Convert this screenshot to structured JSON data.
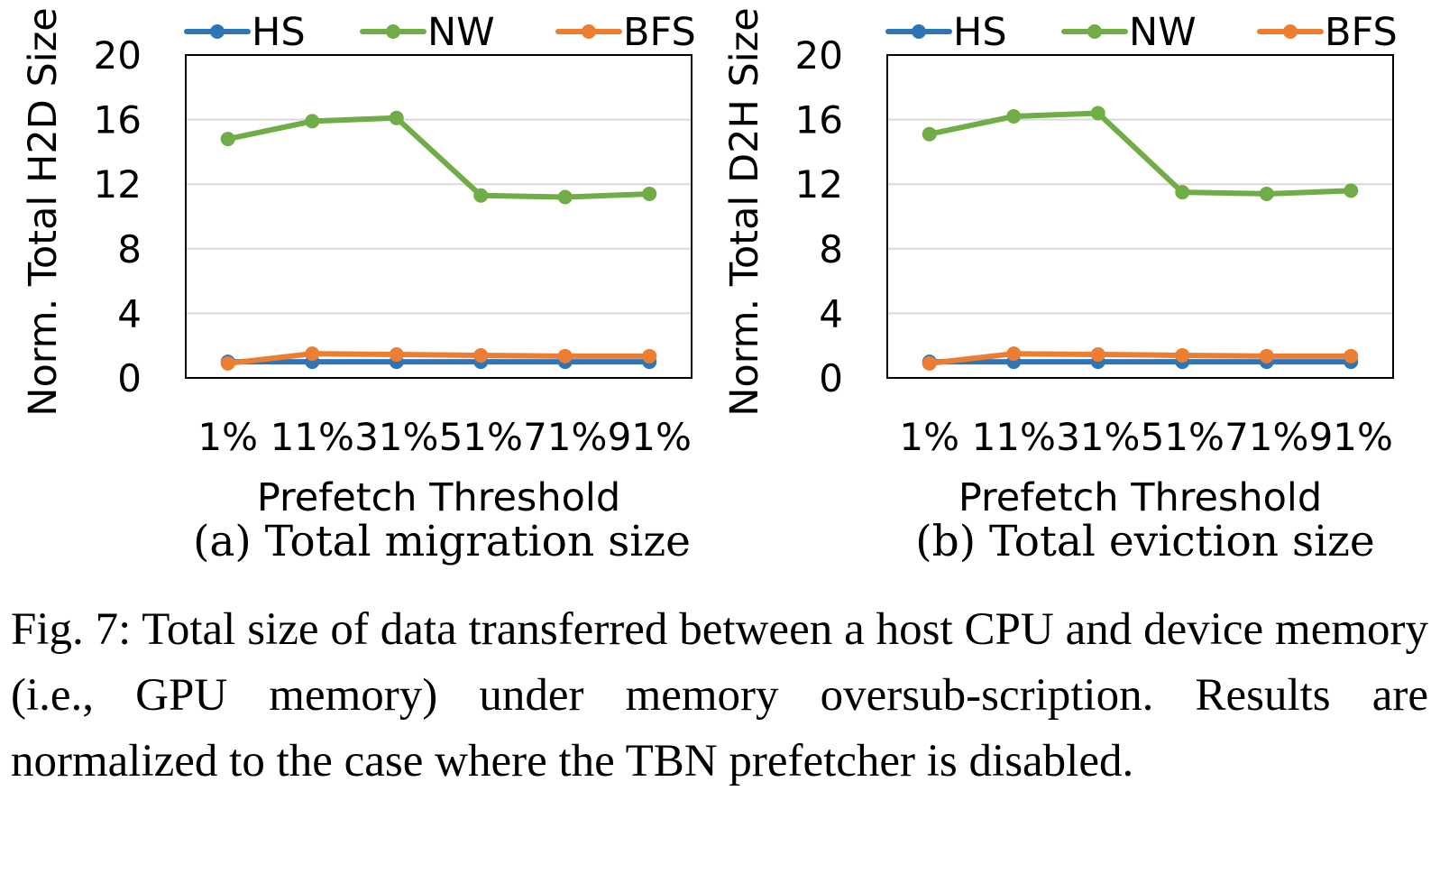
{
  "colors": {
    "HS": "#2e75b6",
    "NW": "#70ad47",
    "BFS": "#ed7d31",
    "grid": "#d9d9d9",
    "frame": "#000000"
  },
  "charts": [
    {
      "subcaption": "(a) Total migration size",
      "chart_data": {
        "type": "line",
        "categories": [
          "1%",
          "11%",
          "31%",
          "51%",
          "71%",
          "91%"
        ],
        "xlabel": "Prefetch Threshold",
        "ylabel": "Norm. Total H2D Size",
        "ylim": [
          0,
          20
        ],
        "yticks": [
          0,
          4,
          8,
          12,
          16,
          20
        ],
        "grid": true,
        "legend": "top",
        "series": [
          {
            "name": "HS",
            "values": [
              1.0,
              1.0,
              1.0,
              1.0,
              1.0,
              1.0
            ]
          },
          {
            "name": "NW",
            "values": [
              14.8,
              15.9,
              16.1,
              11.3,
              11.2,
              11.4
            ]
          },
          {
            "name": "BFS",
            "values": [
              0.9,
              1.5,
              1.45,
              1.4,
              1.35,
              1.35
            ]
          }
        ]
      }
    },
    {
      "subcaption": "(b) Total eviction size",
      "chart_data": {
        "type": "line",
        "categories": [
          "1%",
          "11%",
          "31%",
          "51%",
          "71%",
          "91%"
        ],
        "xlabel": "Prefetch Threshold",
        "ylabel": "Norm. Total D2H Size",
        "ylim": [
          0,
          20
        ],
        "yticks": [
          0,
          4,
          8,
          12,
          16,
          20
        ],
        "grid": true,
        "legend": "top",
        "series": [
          {
            "name": "HS",
            "values": [
              1.0,
              1.0,
              1.0,
              1.0,
              1.0,
              1.0
            ]
          },
          {
            "name": "NW",
            "values": [
              15.1,
              16.2,
              16.4,
              11.5,
              11.4,
              11.6
            ]
          },
          {
            "name": "BFS",
            "values": [
              0.9,
              1.5,
              1.45,
              1.4,
              1.35,
              1.35
            ]
          }
        ]
      }
    }
  ],
  "caption": "Fig. 7: Total size of data transferred between a host CPU and device memory (i.e., GPU memory) under memory oversub-scription. Results are normalized to the case where the TBN prefetcher is disabled."
}
